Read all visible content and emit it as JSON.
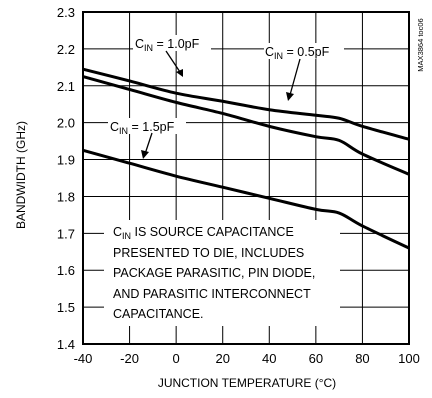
{
  "chart_data": {
    "type": "line",
    "xlabel": "JUNCTION TEMPERATURE (°C)",
    "ylabel": "BANDWIDTH (GHz)",
    "xlim": [
      -40,
      100
    ],
    "ylim": [
      1.4,
      2.3
    ],
    "grid": true,
    "x_ticks": [
      "-40",
      "-20",
      "0",
      "20",
      "40",
      "60",
      "80",
      "100"
    ],
    "y_ticks": [
      "1.4",
      "1.5",
      "1.6",
      "1.7",
      "1.8",
      "1.9",
      "2.0",
      "2.1",
      "2.2",
      "2.3"
    ],
    "series": [
      {
        "name": "C_IN = 0.5pF",
        "label_main": "C",
        "label_sub": "IN",
        "label_rest": " = 0.5pF",
        "points": [
          [
            -40,
            2.145
          ],
          [
            -20,
            2.113
          ],
          [
            0,
            2.08
          ],
          [
            20,
            2.058
          ],
          [
            40,
            2.035
          ],
          [
            60,
            2.02
          ],
          [
            70,
            2.012
          ],
          [
            80,
            1.99
          ],
          [
            100,
            1.955
          ]
        ]
      },
      {
        "name": "C_IN = 1.0pF",
        "label_main": "C",
        "label_sub": "IN",
        "label_rest": " = 1.0pF",
        "points": [
          [
            -40,
            2.125
          ],
          [
            -20,
            2.09
          ],
          [
            0,
            2.055
          ],
          [
            20,
            2.025
          ],
          [
            40,
            1.99
          ],
          [
            60,
            1.962
          ],
          [
            70,
            1.952
          ],
          [
            80,
            1.915
          ],
          [
            100,
            1.86
          ]
        ]
      },
      {
        "name": "C_IN = 1.5pF",
        "label_main": "C",
        "label_sub": "IN",
        "label_rest": " = 1.5pF",
        "points": [
          [
            -40,
            1.925
          ],
          [
            -20,
            1.89
          ],
          [
            0,
            1.855
          ],
          [
            20,
            1.825
          ],
          [
            40,
            1.795
          ],
          [
            60,
            1.765
          ],
          [
            70,
            1.755
          ],
          [
            80,
            1.72
          ],
          [
            100,
            1.66
          ]
        ]
      }
    ],
    "annotation": {
      "line1_main": "C",
      "line1_sub": "IN",
      "line1_rest": " IS SOURCE CAPACITANCE",
      "line2": "PRESENTED TO DIE, INCLUDES",
      "line3": "PACKAGE PARASITIC, PIN DIODE,",
      "line4": "AND PARASITIC INTERCONNECT",
      "line5": "CAPACITANCE."
    },
    "figure_id": "MAX3864 toc06"
  }
}
